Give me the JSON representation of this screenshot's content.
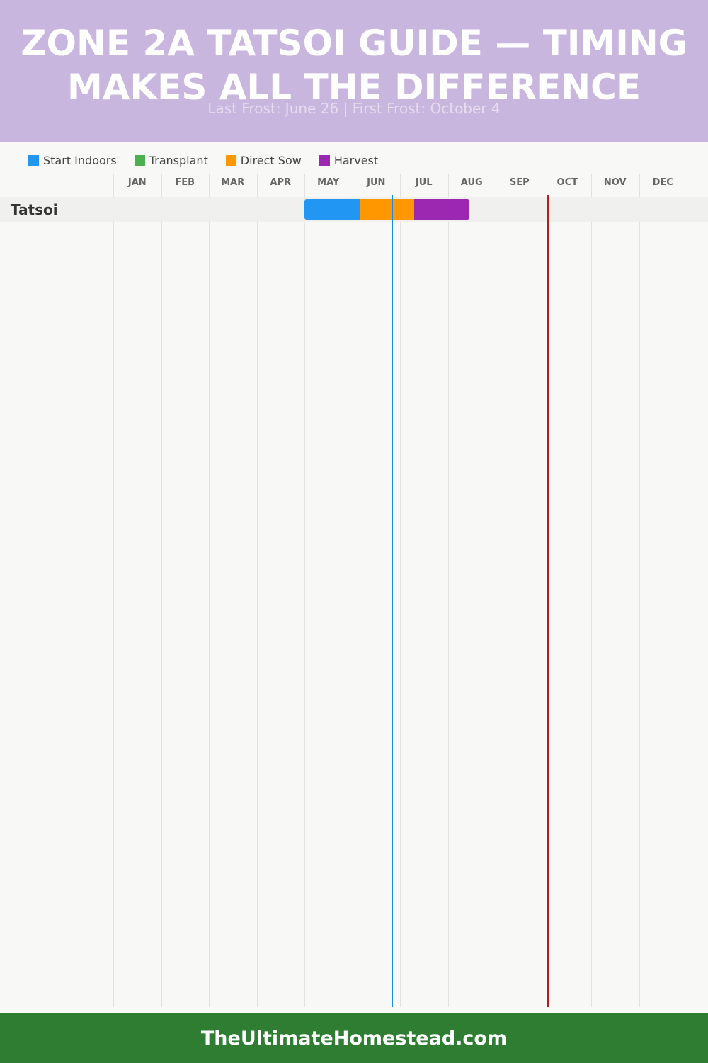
{
  "header": {
    "title": "ZONE 2A TATSOI GUIDE — TIMING MAKES ALL THE DIFFERENCE",
    "subtitle": "Last Frost: June 26 | First Frost: October 4"
  },
  "legend": [
    {
      "label": "Start Indoors",
      "color": "#2196f3"
    },
    {
      "label": "Transplant",
      "color": "#4caf50"
    },
    {
      "label": "Direct Sow",
      "color": "#ff9800"
    },
    {
      "label": "Harvest",
      "color": "#9c27b0"
    }
  ],
  "chart_data": {
    "type": "gantt",
    "months": [
      "JAN",
      "FEB",
      "MAR",
      "APR",
      "MAY",
      "JUN",
      "JUL",
      "AUG",
      "SEP",
      "OCT",
      "NOV",
      "DEC"
    ],
    "rows": [
      {
        "label": "Tatsoi",
        "segments": [
          {
            "phase": "Start Indoors",
            "start_month": 5.0,
            "end_month": 6.15,
            "color": "#2196f3"
          },
          {
            "phase": "Direct Sow",
            "start_month": 6.15,
            "end_month": 7.3,
            "color": "#ff9800"
          },
          {
            "phase": "Harvest",
            "start_month": 7.3,
            "end_month": 8.45,
            "color": "#9c27b0"
          }
        ]
      }
    ],
    "markers": [
      {
        "label": "Last Frost",
        "date": "June 26",
        "month_pos": 6.84,
        "color": "#1e88e5"
      },
      {
        "label": "First Frost",
        "date": "October 4",
        "month_pos": 10.1,
        "color": "#b71c1c"
      }
    ]
  },
  "footer": {
    "site": "TheUltimateHomestead.com"
  }
}
